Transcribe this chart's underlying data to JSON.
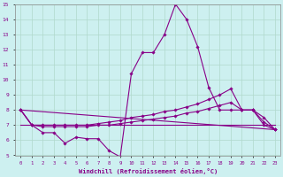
{
  "xlabel": "Windchill (Refroidissement éolien,°C)",
  "xlim": [
    -0.5,
    23.5
  ],
  "ylim": [
    5,
    15
  ],
  "yticks": [
    5,
    6,
    7,
    8,
    9,
    10,
    11,
    12,
    13,
    14,
    15
  ],
  "xticks": [
    0,
    1,
    2,
    3,
    4,
    5,
    6,
    7,
    8,
    9,
    10,
    11,
    12,
    13,
    14,
    15,
    16,
    17,
    18,
    19,
    20,
    21,
    22,
    23
  ],
  "bg_color": "#cdf0f0",
  "grid_color": "#b0d8cc",
  "line_color": "#880088",
  "line_width": 0.8,
  "marker": "D",
  "marker_size": 1.8,
  "series": [
    {
      "x": [
        0,
        1,
        2,
        3,
        4,
        5,
        6,
        7,
        8,
        9,
        10,
        11,
        12,
        13,
        14,
        15,
        16,
        17,
        18,
        19,
        20,
        21,
        22,
        23
      ],
      "y": [
        8.0,
        7.0,
        6.5,
        6.5,
        5.8,
        6.2,
        6.1,
        6.1,
        5.3,
        4.9,
        10.4,
        11.8,
        11.8,
        13.0,
        15.0,
        14.0,
        12.2,
        9.5,
        8.0,
        8.0,
        8.0,
        8.0,
        7.0,
        6.7
      ]
    },
    {
      "x": [
        0,
        1,
        2,
        3,
        4,
        5,
        6,
        7,
        8,
        9,
        10,
        11,
        12,
        13,
        14,
        15,
        16,
        17,
        18,
        19,
        20,
        21,
        22,
        23
      ],
      "y": [
        8.0,
        7.0,
        7.0,
        7.0,
        7.0,
        7.0,
        7.0,
        7.1,
        7.2,
        7.3,
        7.5,
        7.6,
        7.7,
        7.9,
        8.0,
        8.2,
        8.4,
        8.7,
        9.0,
        9.4,
        8.0,
        8.0,
        7.5,
        6.7
      ]
    },
    {
      "x": [
        0,
        1,
        2,
        3,
        4,
        5,
        6,
        7,
        8,
        9,
        10,
        11,
        12,
        13,
        14,
        15,
        16,
        17,
        18,
        19,
        20,
        21,
        22,
        23
      ],
      "y": [
        8.0,
        7.0,
        6.9,
        6.9,
        6.9,
        6.9,
        6.9,
        7.0,
        7.0,
        7.1,
        7.2,
        7.3,
        7.4,
        7.5,
        7.6,
        7.8,
        7.9,
        8.1,
        8.3,
        8.5,
        8.0,
        8.0,
        7.2,
        6.7
      ]
    },
    {
      "x": [
        0,
        23
      ],
      "y": [
        8.0,
        6.7
      ]
    },
    {
      "x": [
        0,
        23
      ],
      "y": [
        7.0,
        7.0
      ]
    }
  ]
}
